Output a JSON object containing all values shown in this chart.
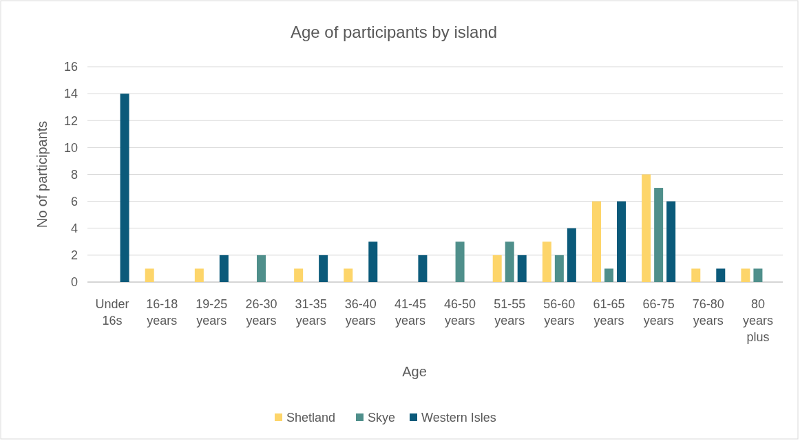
{
  "chart_data": {
    "type": "bar",
    "title": "Age of participants by island",
    "xlabel": "Age",
    "ylabel": "No of participants",
    "categories": [
      "Under 16s",
      "16-18 years",
      "19-25 years",
      "26-30 years",
      "31-35 years",
      "36-40 years",
      "41-45 years",
      "46-50 years",
      "51-55 years",
      "56-60 years",
      "61-65 years",
      "66-75 years",
      "76-80 years",
      "80 years plus"
    ],
    "series": [
      {
        "name": "Shetland",
        "color": "#fdd56a",
        "values": [
          null,
          1,
          1,
          null,
          1,
          1,
          null,
          null,
          2,
          3,
          6,
          8,
          1,
          1
        ]
      },
      {
        "name": "Skye",
        "color": "#4f8f8b",
        "values": [
          null,
          null,
          null,
          2,
          null,
          null,
          null,
          3,
          3,
          2,
          1,
          7,
          null,
          1
        ]
      },
      {
        "name": "Western Isles",
        "color": "#0b5a7a",
        "values": [
          14,
          null,
          2,
          null,
          2,
          3,
          2,
          null,
          2,
          4,
          6,
          6,
          1,
          null
        ]
      }
    ],
    "ylim": [
      0,
      16
    ],
    "yticks": [
      0,
      2,
      4,
      6,
      8,
      10,
      12,
      14,
      16
    ],
    "grid": "y",
    "legend": "bottom"
  }
}
